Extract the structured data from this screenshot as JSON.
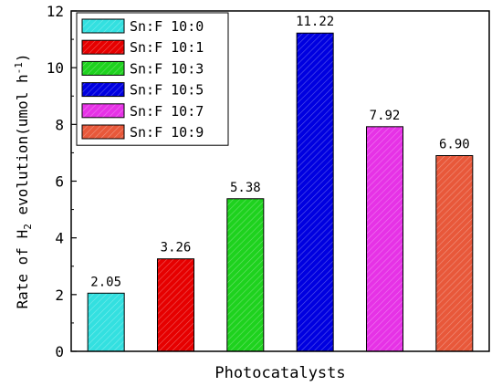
{
  "chart_data": {
    "type": "bar",
    "xlabel": "Photocatalysts",
    "ylabel": {
      "prefix": "Rate of H",
      "sub": "2",
      "mid": " evolution(umol h",
      "sup": "-1",
      "suffix": ")"
    },
    "ylim": [
      0,
      12
    ],
    "yticks": [
      0,
      2,
      4,
      6,
      8,
      10,
      12
    ],
    "grid": false,
    "legend_position": "top-left",
    "series": [
      {
        "name": "Sn:F 10:0",
        "value": 2.05,
        "label": "2.05",
        "color": "#33e0e0"
      },
      {
        "name": "Sn:F 10:1",
        "value": 3.26,
        "label": "3.26",
        "color": "#e60000"
      },
      {
        "name": "Sn:F 10:3",
        "value": 5.38,
        "label": "5.38",
        "color": "#1ed21e"
      },
      {
        "name": "Sn:F 10:5",
        "value": 11.22,
        "label": "11.22",
        "color": "#0000e0"
      },
      {
        "name": "Sn:F 10:7",
        "value": 7.92,
        "label": "7.92",
        "color": "#e632e6"
      },
      {
        "name": "Sn:F 10:9",
        "value": 6.9,
        "label": "6.90",
        "color": "#e8583a"
      }
    ]
  }
}
